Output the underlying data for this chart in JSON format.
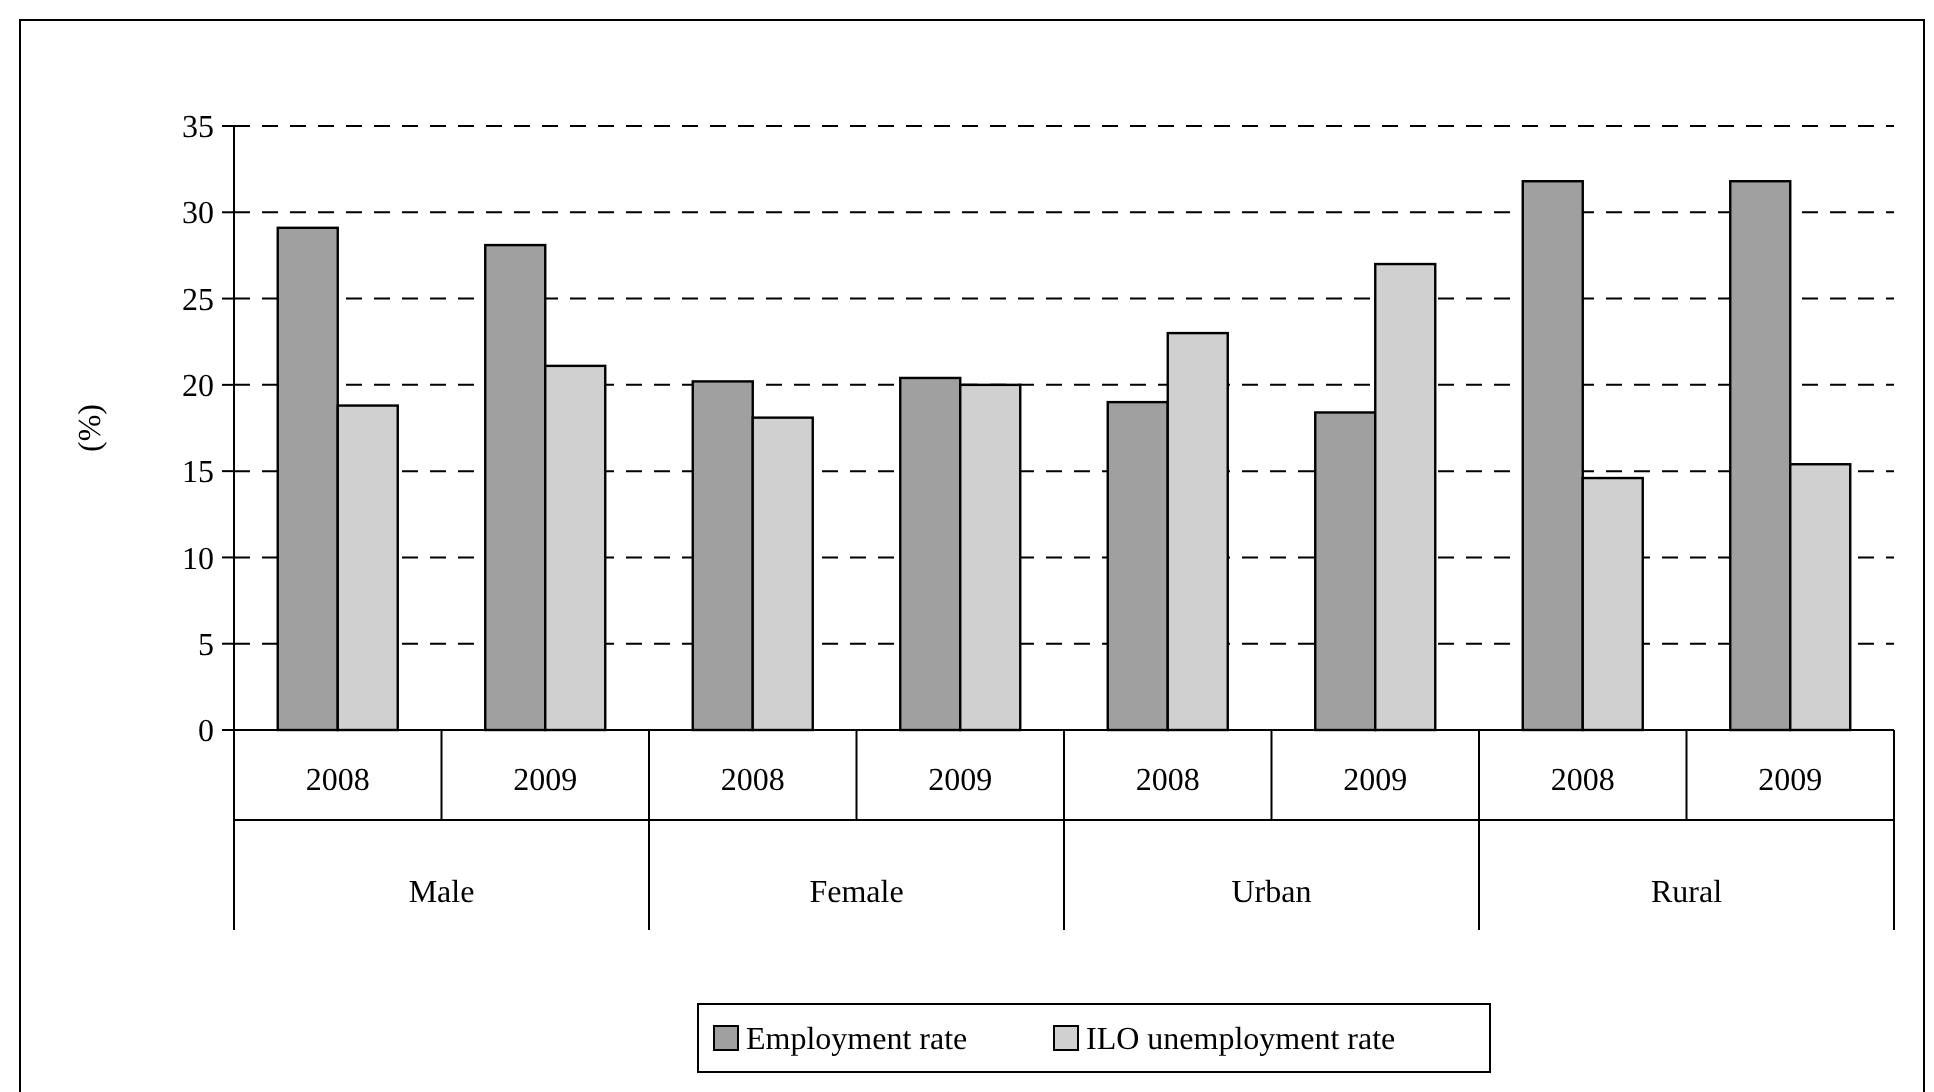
{
  "chart_data": {
    "type": "bar",
    "ylabel": "(%)",
    "categories": [
      "2008",
      "2009",
      "2008",
      "2009",
      "2008",
      "2009",
      "2008",
      "2009"
    ],
    "annotations": [
      "Male",
      "Female",
      "Urban",
      "Rural"
    ],
    "series": [
      {
        "name": "Employment rate",
        "color": "#a0a0a0",
        "values": [
          29.1,
          28.1,
          20.2,
          20.4,
          19.0,
          18.4,
          31.8,
          31.8
        ]
      },
      {
        "name": "ILO unemployment rate",
        "color": "#d0d0d0",
        "values": [
          18.8,
          21.1,
          18.1,
          20.0,
          23.0,
          27.0,
          14.6,
          15.4
        ]
      }
    ],
    "ylim": [
      0,
      35
    ],
    "yticks": [
      0,
      5,
      10,
      15,
      20,
      25,
      30,
      35
    ],
    "grid": "y",
    "legend": "bottom"
  }
}
